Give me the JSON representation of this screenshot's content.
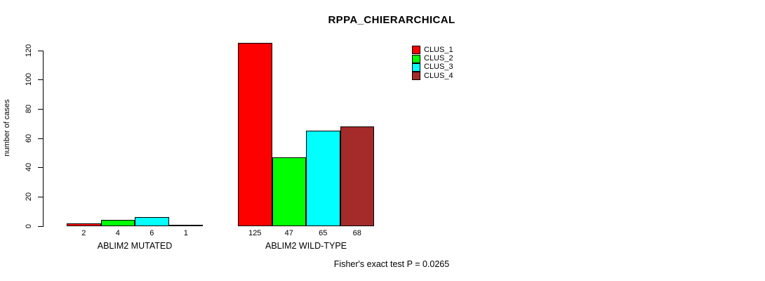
{
  "title": "RPPA_CHIERARCHICAL",
  "chart_data": {
    "type": "bar",
    "title": "RPPA_CHIERARCHICAL",
    "xlabel": "",
    "ylabel": "number of cases",
    "ylim": [
      0,
      130
    ],
    "y_ticks": [
      0,
      20,
      40,
      60,
      80,
      100,
      120
    ],
    "grid": false,
    "legend_position": "top-right",
    "categories": [
      "ABLIM2 MUTATED",
      "ABLIM2 WILD-TYPE"
    ],
    "groups": [
      {
        "label": "ABLIM2 MUTATED",
        "values": [
          2,
          4,
          6,
          1
        ]
      },
      {
        "label": "ABLIM2 WILD-TYPE",
        "values": [
          125,
          47,
          65,
          68
        ]
      }
    ],
    "series": [
      {
        "name": "CLUS_1",
        "color": "#FF0000"
      },
      {
        "name": "CLUS_2",
        "color": "#00FF00"
      },
      {
        "name": "CLUS_3",
        "color": "#00FFFF"
      },
      {
        "name": "CLUS_4",
        "color": "#A52A2A"
      }
    ],
    "annotation": "Fisher's exact test P = 0.0265"
  },
  "colors": {
    "background": "#FFFFFF",
    "axis": "#000000",
    "text": "#000000",
    "bar_border": "#000000"
  }
}
